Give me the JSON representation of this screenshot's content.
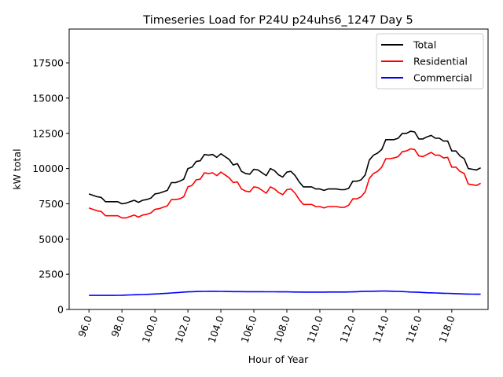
{
  "chart_data": {
    "type": "line",
    "title": "Timeseries Load for P24U p24uhs6_1247  Day 5",
    "xlabel": "Hour of Year",
    "ylabel": "kW total",
    "xlim": [
      94.8,
      120.2
    ],
    "ylim": [
      0,
      19900
    ],
    "x_ticks": [
      96,
      98,
      100,
      102,
      104,
      106,
      108,
      110,
      112,
      114,
      116,
      118
    ],
    "x_tick_labels": [
      "96.0",
      "98.0",
      "100.0",
      "102.0",
      "104.0",
      "106.0",
      "108.0",
      "110.0",
      "112.0",
      "114.0",
      "116.0",
      "118.0"
    ],
    "y_ticks": [
      0,
      2500,
      5000,
      7500,
      10000,
      12500,
      15000,
      17500
    ],
    "y_tick_labels": [
      "0",
      "2500",
      "5000",
      "7500",
      "10000",
      "12500",
      "15000",
      "17500"
    ],
    "grid": false,
    "legend_position": "top-right",
    "x": [
      96.0,
      96.25,
      96.5,
      96.75,
      97.0,
      97.25,
      97.5,
      97.75,
      98.0,
      98.25,
      98.5,
      98.75,
      99.0,
      99.25,
      99.5,
      99.75,
      100.0,
      100.25,
      100.5,
      100.75,
      101.0,
      101.25,
      101.5,
      101.75,
      102.0,
      102.25,
      102.5,
      102.75,
      103.0,
      103.25,
      103.5,
      103.75,
      104.0,
      104.25,
      104.5,
      104.75,
      105.0,
      105.25,
      105.5,
      105.75,
      106.0,
      106.25,
      106.5,
      106.75,
      107.0,
      107.25,
      107.5,
      107.75,
      108.0,
      108.25,
      108.5,
      108.75,
      109.0,
      109.25,
      109.5,
      109.75,
      110.0,
      110.25,
      110.5,
      110.75,
      111.0,
      111.25,
      111.5,
      111.75,
      112.0,
      112.25,
      112.5,
      112.75,
      113.0,
      113.25,
      113.5,
      113.75,
      114.0,
      114.25,
      114.5,
      114.75,
      115.0,
      115.25,
      115.5,
      115.75,
      116.0,
      116.25,
      116.5,
      116.75,
      117.0,
      117.25,
      117.5,
      117.75,
      118.0,
      118.25,
      118.5,
      118.75,
      119.0,
      119.25,
      119.5,
      119.75
    ],
    "series": [
      {
        "name": "Total",
        "color": "#000000",
        "values": [
          8200,
          8100,
          8000,
          7950,
          7650,
          7650,
          7650,
          7650,
          7500,
          7550,
          7650,
          7750,
          7600,
          7750,
          7800,
          7900,
          8200,
          8250,
          8350,
          8450,
          9000,
          9000,
          9100,
          9250,
          10000,
          10100,
          10500,
          10550,
          11000,
          10950,
          11000,
          10800,
          11050,
          10850,
          10650,
          10250,
          10350,
          9800,
          9650,
          9600,
          9950,
          9900,
          9700,
          9500,
          10000,
          9850,
          9550,
          9400,
          9750,
          9800,
          9500,
          9050,
          8700,
          8700,
          8700,
          8550,
          8550,
          8450,
          8550,
          8550,
          8550,
          8500,
          8500,
          8600,
          9100,
          9100,
          9200,
          9550,
          10600,
          10950,
          11100,
          11350,
          12050,
          12050,
          12050,
          12150,
          12500,
          12500,
          12650,
          12600,
          12100,
          12100,
          12250,
          12350,
          12150,
          12150,
          11950,
          11950,
          11250,
          11250,
          10900,
          10700,
          10000,
          9950,
          9900,
          10050
        ]
      },
      {
        "name": "Residential",
        "color": "#ff0000",
        "values": [
          7200,
          7100,
          7000,
          6950,
          6650,
          6650,
          6650,
          6650,
          6500,
          6500,
          6600,
          6700,
          6550,
          6700,
          6750,
          6850,
          7100,
          7150,
          7250,
          7350,
          7800,
          7800,
          7850,
          8000,
          8700,
          8800,
          9200,
          9250,
          9700,
          9650,
          9700,
          9500,
          9750,
          9550,
          9350,
          9000,
          9050,
          8550,
          8400,
          8350,
          8700,
          8650,
          8450,
          8250,
          8700,
          8550,
          8300,
          8150,
          8500,
          8550,
          8250,
          7800,
          7450,
          7450,
          7450,
          7300,
          7300,
          7200,
          7300,
          7300,
          7300,
          7250,
          7250,
          7400,
          7850,
          7850,
          8000,
          8350,
          9300,
          9650,
          9800,
          10100,
          10700,
          10700,
          10750,
          10850,
          11200,
          11250,
          11400,
          11350,
          10900,
          10850,
          11000,
          11150,
          10950,
          10950,
          10750,
          10800,
          10100,
          10100,
          9800,
          9650,
          8900,
          8850,
          8800,
          8950
        ]
      },
      {
        "name": "Commercial",
        "color": "#0000ff",
        "values": [
          1000,
          1000,
          1000,
          1000,
          1000,
          1000,
          1000,
          1005,
          1010,
          1020,
          1030,
          1040,
          1050,
          1060,
          1070,
          1080,
          1100,
          1110,
          1130,
          1150,
          1170,
          1190,
          1210,
          1230,
          1250,
          1260,
          1270,
          1275,
          1280,
          1285,
          1285,
          1285,
          1280,
          1275,
          1270,
          1265,
          1265,
          1265,
          1260,
          1260,
          1260,
          1260,
          1260,
          1255,
          1255,
          1255,
          1250,
          1250,
          1250,
          1245,
          1240,
          1235,
          1230,
          1230,
          1230,
          1230,
          1230,
          1230,
          1235,
          1235,
          1235,
          1240,
          1240,
          1245,
          1250,
          1260,
          1275,
          1285,
          1290,
          1295,
          1300,
          1305,
          1305,
          1300,
          1290,
          1280,
          1270,
          1255,
          1240,
          1230,
          1220,
          1205,
          1190,
          1180,
          1170,
          1160,
          1150,
          1140,
          1130,
          1120,
          1110,
          1100,
          1090,
          1085,
          1080,
          1080
        ]
      }
    ]
  }
}
